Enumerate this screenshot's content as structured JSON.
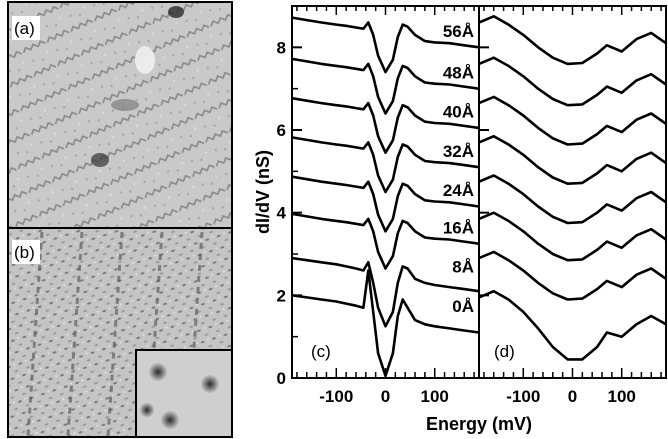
{
  "panels": {
    "a_label": "(a)",
    "b_label": "(b)",
    "c_label": "(c)",
    "d_label": "(d)"
  },
  "chart_data": {
    "type": "line",
    "xlabel": "Energy (mV)",
    "ylabel": "dI/dV (nS)",
    "xlim": [
      -190,
      190
    ],
    "ylim": [
      0,
      9
    ],
    "x_ticks": [
      -100,
      0,
      100
    ],
    "x_tick_labels": [
      "-100",
      "0",
      "100"
    ],
    "y_ticks": [
      0,
      2,
      4,
      6,
      8
    ],
    "y_tick_labels": [
      "0",
      "2",
      "4",
      "6",
      "8"
    ],
    "curve_labels": [
      "56Å",
      "48Å",
      "40Å",
      "32Å",
      "24Å",
      "16Å",
      "8Å",
      "0Å"
    ],
    "offsets": [
      8.3,
      7.3,
      6.35,
      5.4,
      4.45,
      3.55,
      2.6,
      1.65
    ],
    "panel_c": {
      "x": [
        -190,
        -160,
        -130,
        -100,
        -80,
        -60,
        -45,
        -35,
        -25,
        -15,
        0,
        15,
        25,
        35,
        45,
        60,
        80,
        100,
        130,
        160,
        190
      ],
      "series": [
        {
          "label": "56Å",
          "values": [
            8.72,
            8.66,
            8.6,
            8.55,
            8.52,
            8.48,
            8.45,
            8.6,
            8.3,
            7.8,
            7.4,
            7.7,
            8.25,
            8.55,
            8.5,
            8.3,
            8.15,
            8.12,
            8.1,
            8.05,
            8.0
          ]
        },
        {
          "label": "48Å",
          "values": [
            7.72,
            7.66,
            7.6,
            7.55,
            7.52,
            7.48,
            7.45,
            7.6,
            7.3,
            6.8,
            6.4,
            6.7,
            7.25,
            7.55,
            7.5,
            7.3,
            7.15,
            7.12,
            7.1,
            7.05,
            7.0
          ]
        },
        {
          "label": "40Å",
          "values": [
            6.77,
            6.71,
            6.65,
            6.6,
            6.57,
            6.53,
            6.5,
            6.65,
            6.35,
            5.85,
            5.45,
            5.75,
            6.3,
            6.6,
            6.55,
            6.35,
            6.2,
            6.17,
            6.15,
            6.1,
            6.05
          ]
        },
        {
          "label": "32Å",
          "values": [
            5.82,
            5.76,
            5.7,
            5.65,
            5.62,
            5.58,
            5.55,
            5.7,
            5.4,
            4.9,
            4.5,
            4.8,
            5.35,
            5.65,
            5.6,
            5.4,
            5.25,
            5.22,
            5.2,
            5.15,
            5.1
          ]
        },
        {
          "label": "24Å",
          "values": [
            4.87,
            4.81,
            4.75,
            4.7,
            4.67,
            4.63,
            4.6,
            4.75,
            4.45,
            3.95,
            3.55,
            3.85,
            4.4,
            4.7,
            4.65,
            4.45,
            4.3,
            4.27,
            4.25,
            4.2,
            4.15
          ]
        },
        {
          "label": "16Å",
          "values": [
            3.97,
            3.91,
            3.85,
            3.8,
            3.77,
            3.73,
            3.7,
            3.85,
            3.55,
            3.05,
            2.65,
            2.95,
            3.5,
            3.8,
            3.75,
            3.55,
            3.4,
            3.37,
            3.35,
            3.3,
            3.25
          ]
        },
        {
          "label": "8Å",
          "values": [
            2.9,
            2.85,
            2.8,
            2.75,
            2.7,
            2.65,
            2.6,
            2.8,
            2.3,
            1.7,
            1.25,
            1.6,
            2.3,
            2.7,
            2.65,
            2.4,
            2.3,
            2.25,
            2.2,
            2.15,
            2.1
          ]
        },
        {
          "label": "0Å",
          "values": [
            2.0,
            1.95,
            1.9,
            1.85,
            1.8,
            1.75,
            1.7,
            2.6,
            1.6,
            0.6,
            0.05,
            0.6,
            1.5,
            1.9,
            1.7,
            1.4,
            1.3,
            1.25,
            1.2,
            1.15,
            1.1
          ]
        }
      ]
    },
    "panel_d": {
      "x": [
        -190,
        -160,
        -130,
        -100,
        -70,
        -40,
        -10,
        20,
        50,
        70,
        100,
        130,
        160,
        190
      ],
      "series": [
        {
          "label": "56Å",
          "values": [
            8.6,
            8.75,
            8.55,
            8.3,
            8.0,
            7.75,
            7.6,
            7.62,
            7.85,
            8.05,
            7.9,
            8.2,
            8.35,
            8.1
          ]
        },
        {
          "label": "48Å",
          "values": [
            7.6,
            7.75,
            7.55,
            7.3,
            7.0,
            6.75,
            6.6,
            6.62,
            6.85,
            7.05,
            6.9,
            7.2,
            7.35,
            7.1
          ]
        },
        {
          "label": "40Å",
          "values": [
            6.65,
            6.8,
            6.6,
            6.35,
            6.05,
            5.8,
            5.65,
            5.67,
            5.9,
            6.1,
            5.95,
            6.25,
            6.4,
            6.15
          ]
        },
        {
          "label": "32Å",
          "values": [
            5.7,
            5.85,
            5.65,
            5.4,
            5.1,
            4.85,
            4.7,
            4.72,
            4.95,
            5.15,
            5.0,
            5.3,
            5.45,
            5.2
          ]
        },
        {
          "label": "24Å",
          "values": [
            4.75,
            4.9,
            4.7,
            4.45,
            4.15,
            3.9,
            3.75,
            3.77,
            4.0,
            4.2,
            4.05,
            4.35,
            4.5,
            4.25
          ]
        },
        {
          "label": "16Å",
          "values": [
            3.85,
            4.0,
            3.8,
            3.55,
            3.25,
            3.0,
            2.85,
            2.87,
            3.1,
            3.3,
            3.15,
            3.45,
            3.6,
            3.35
          ]
        },
        {
          "label": "8Å",
          "values": [
            2.9,
            3.05,
            2.85,
            2.6,
            2.3,
            2.05,
            1.9,
            1.92,
            2.15,
            2.35,
            2.2,
            2.5,
            2.65,
            2.4
          ]
        },
        {
          "label": "0Å",
          "values": [
            1.95,
            2.1,
            1.9,
            1.6,
            1.2,
            0.75,
            0.45,
            0.45,
            0.75,
            1.1,
            1.0,
            1.3,
            1.5,
            1.3
          ]
        }
      ]
    }
  }
}
